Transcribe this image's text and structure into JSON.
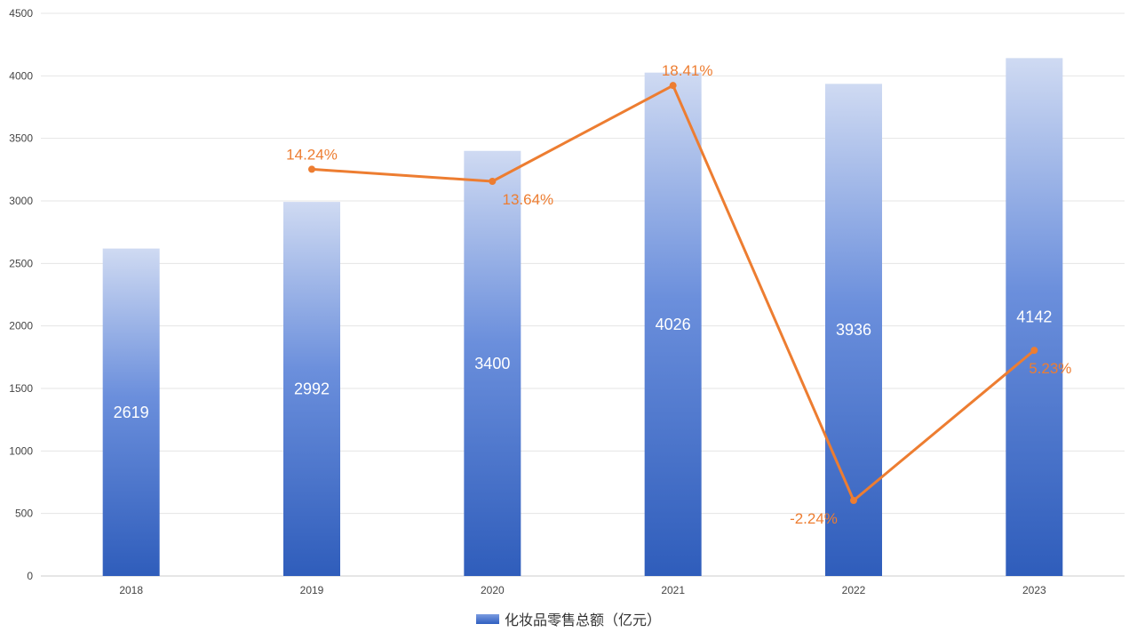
{
  "chart_data": {
    "type": "bar",
    "categories": [
      "2018",
      "2019",
      "2020",
      "2021",
      "2022",
      "2023"
    ],
    "series": [
      {
        "name": "化妆品零售总额（亿元）",
        "type": "bar",
        "values": [
          2619,
          2992,
          3400,
          4026,
          3936,
          4142
        ],
        "labels": [
          "2619",
          "2992",
          "3400",
          "4026",
          "3936",
          "4142"
        ]
      },
      {
        "type": "line",
        "values": [
          null,
          14.24,
          13.64,
          18.41,
          -2.24,
          5.23
        ],
        "labels": [
          "",
          "14.24%",
          "13.64%",
          "18.41%",
          "-2.24%",
          "5.23%"
        ]
      }
    ],
    "y_ticks": [
      "0",
      "500",
      "1000",
      "1500",
      "2000",
      "2500",
      "3000",
      "3500",
      "4000",
      "4500"
    ],
    "ylim": [
      0,
      4500
    ],
    "grid": true,
    "legend_position": "bottom",
    "colors": {
      "bar_top": "#cfdaf2",
      "bar_mid": "#6b8fdc",
      "bar_bottom": "#2f5dbb",
      "line": "#ed7d31",
      "grid": "#e4e4e4"
    }
  }
}
